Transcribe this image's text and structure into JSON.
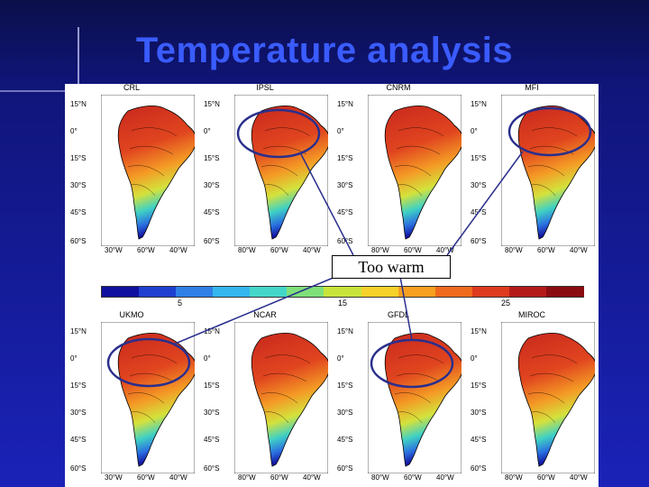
{
  "slide": {
    "title": "Temperature analysis",
    "callout": "Too warm"
  },
  "panels": [
    {
      "name": "CRL"
    },
    {
      "name": "IPSL"
    },
    {
      "name": "CNRM"
    },
    {
      "name": "MFI"
    },
    {
      "name": "UKMO"
    },
    {
      "name": "NCAR"
    },
    {
      "name": "GFDL"
    },
    {
      "name": "MIROC"
    }
  ],
  "lat_labels": [
    "15°N",
    "0°",
    "15°S",
    "30°S",
    "45°S",
    "60°S"
  ],
  "lon_labels_variant_a": [
    "80°W",
    "60°W",
    "40°W"
  ],
  "lon_labels_variant_b": [
    "30°W",
    "60°W",
    "40°W"
  ],
  "colorbar": {
    "ticks": [
      "5",
      "15",
      "25"
    ],
    "colors": [
      "#1010a0",
      "#1f3fd0",
      "#2f7fe6",
      "#34b6ee",
      "#44d6c8",
      "#7fe07a",
      "#c8e43a",
      "#f6d12a",
      "#f7a020",
      "#ef6a1c",
      "#de3a1e",
      "#b41a18",
      "#8a0c10"
    ]
  },
  "highlighted_panels": [
    "IPSL",
    "MFI",
    "UKMO",
    "GFDL"
  ]
}
